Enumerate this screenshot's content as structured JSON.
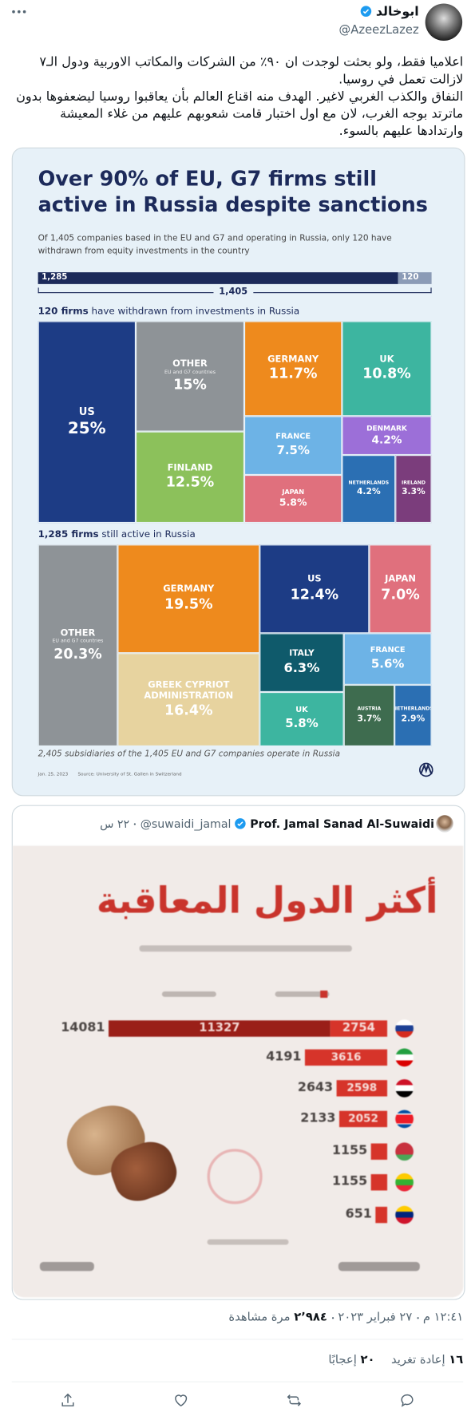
{
  "tweet": {
    "author": {
      "name": "ابوخالد",
      "handle": "@AzeezLazez"
    },
    "text": [
      "اعلاميا فقط، ولو بحثت لوجدت ان ٩٠٪ من الشركات والمكاتب الاوربية ودول الـ٧ لازالت تعمل في روسيا.",
      "النفاق والكذب الغربي لاغير. الهدف منه اقناع العالم بأن يعاقبوا روسيا ليضعفوها بدون ماترتد بوجه الغرب، لان مع اول اختبار قامت شعوبهم عليهم من غلاء المعيشة وارتدادها عليهم بالسوء."
    ],
    "infographic": {
      "title": "Over 90% of EU, G7 firms still active in Russia despite sanctions",
      "subtitle": "Of 1,405 companies based in the EU and G7 and operating in Russia, only 120 have withdrawn from equity investments in the country",
      "bar": {
        "active": "1,285",
        "withdrawn": "120",
        "total": "1,405"
      },
      "withdrawn_heading": {
        "bold": "120 firms",
        "rest": "have withdrawn from investments in Russia"
      },
      "withdrawn_treemap": [
        {
          "label": "US",
          "value": "25%"
        },
        {
          "label": "OTHER",
          "note": "EU and G7 countries",
          "value": "15%"
        },
        {
          "label": "FINLAND",
          "value": "12.5%"
        },
        {
          "label": "GERMANY",
          "value": "11.7%"
        },
        {
          "label": "UK",
          "value": "10.8%"
        },
        {
          "label": "FRANCE",
          "value": "7.5%"
        },
        {
          "label": "JAPAN",
          "value": "5.8%"
        },
        {
          "label": "DENMARK",
          "value": "4.2%"
        },
        {
          "label": "NETHERLANDS",
          "value": "4.2%"
        },
        {
          "label": "IRELAND",
          "value": "3.3%"
        }
      ],
      "active_heading": {
        "bold": "1,285 firms",
        "rest": "still active in Russia"
      },
      "active_treemap": [
        {
          "label": "OTHER",
          "note": "EU and G7 countries",
          "value": "20.3%"
        },
        {
          "label": "GERMANY",
          "value": "19.5%"
        },
        {
          "label": "GREEK CYPRIOT ADMINISTRATION",
          "value": "16.4%"
        },
        {
          "label": "US",
          "value": "12.4%"
        },
        {
          "label": "JAPAN",
          "value": "7.0%"
        },
        {
          "label": "ITALY",
          "value": "6.3%"
        },
        {
          "label": "FRANCE",
          "value": "5.6%"
        },
        {
          "label": "UK",
          "value": "5.8%"
        },
        {
          "label": "AUSTRIA",
          "value": "3.7%"
        },
        {
          "label": "NETHERLANDS",
          "value": "2.9%"
        }
      ],
      "footnote": "2,405 subsidiaries of the 1,405 EU and G7 companies operate in Russia",
      "date": "Jan. 25, 2023",
      "source": "Source: University of St. Gallen in Switzerland"
    },
    "quoted_tweet": {
      "author": {
        "name": "Prof. Jamal Sanad Al-Suwaidi",
        "handle": "@suwaidi_jamal"
      },
      "age": "٢٢ س",
      "image": {
        "title": "أكثر الدول المعاقبة",
        "rows": [
          {
            "total": "14081",
            "segments": [
              "11327",
              "2754"
            ]
          },
          {
            "total": "4191",
            "segments": [
              "3616"
            ]
          },
          {
            "total": "2643",
            "segments": [
              "2598"
            ]
          },
          {
            "total": "2133",
            "segments": [
              "2052"
            ]
          },
          {
            "total": "1155"
          },
          {
            "total": "1155"
          },
          {
            "total": "651"
          }
        ]
      }
    },
    "timestamp": {
      "time": "١٢:٤١ م",
      "date": "٢٧ فبراير ٢٠٢٣",
      "views": "٢٬٩٨٤",
      "views_label": "مرة مشاهدة"
    },
    "stats": {
      "retweets": "١٦",
      "retweets_label": "إعادة تغريد",
      "likes": "٢٠",
      "likes_label": "إعجابًا"
    }
  }
}
